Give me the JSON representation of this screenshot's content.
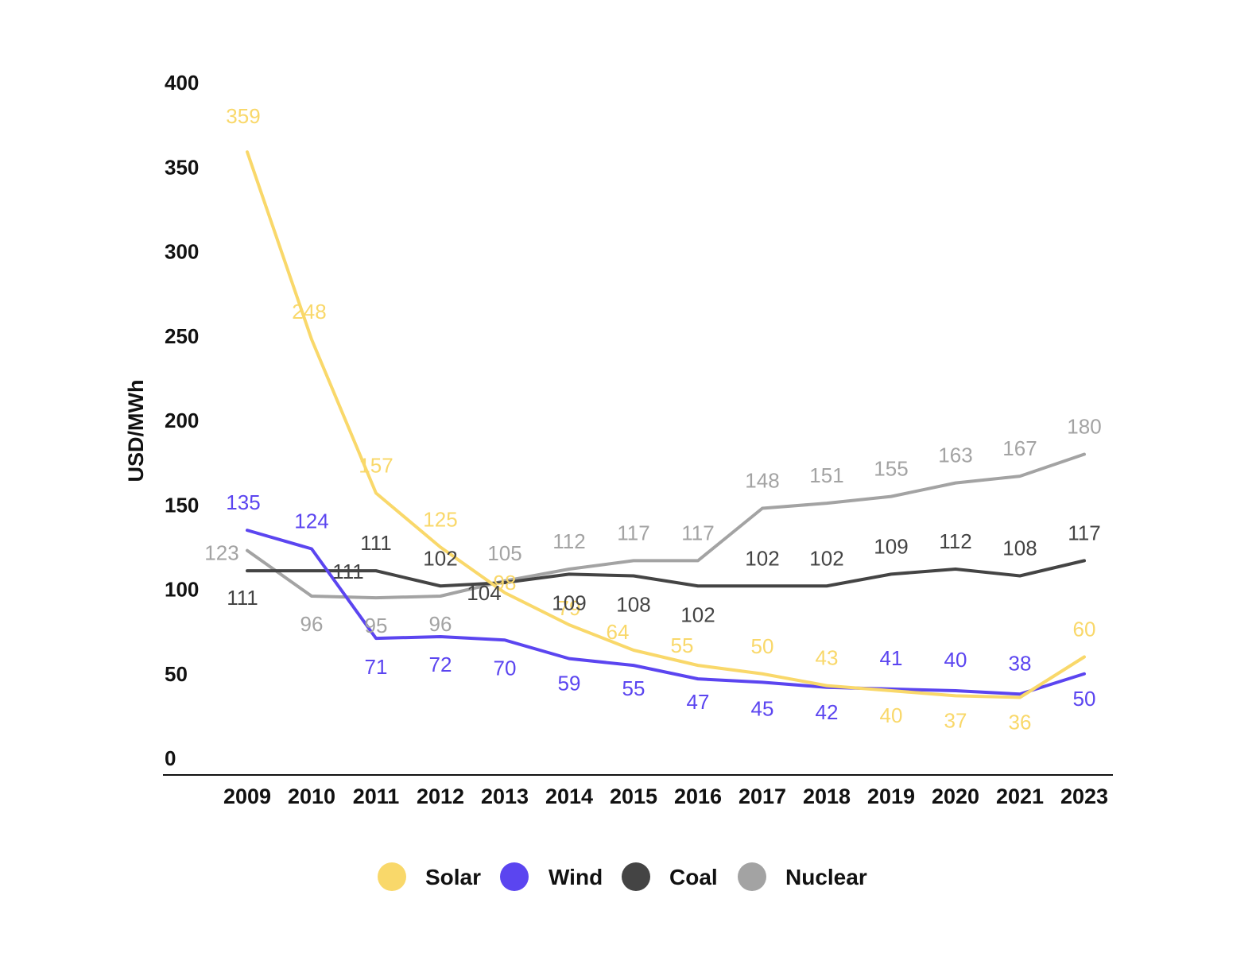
{
  "chart_data": {
    "type": "line",
    "title": "",
    "xlabel": "",
    "ylabel": "USD/MWh",
    "ylim": [
      0,
      400
    ],
    "y_ticks": [
      "0",
      "50",
      "100",
      "150",
      "200",
      "250",
      "300",
      "350",
      "400"
    ],
    "categories": [
      "2009",
      "2010",
      "2011",
      "2012",
      "2013",
      "2014",
      "2015",
      "2016",
      "2017",
      "2018",
      "2019",
      "2020",
      "2021",
      "2023"
    ],
    "grid": false,
    "legend_position": "bottom",
    "series": [
      {
        "name": "Solar",
        "color": "#F9D86A",
        "values": [
          359,
          248,
          157,
          125,
          98,
          79,
          64,
          55,
          50,
          43,
          40,
          37,
          36,
          60
        ],
        "labels": [
          "359",
          "248",
          "157",
          "125",
          "98",
          "79",
          "64",
          "55",
          "50",
          "43",
          "40",
          "37",
          "36",
          "60"
        ]
      },
      {
        "name": "Wind",
        "color": "#5B45F0",
        "values": [
          135,
          124,
          71,
          72,
          70,
          59,
          55,
          47,
          45,
          42,
          41,
          40,
          38,
          50
        ],
        "labels": [
          "135",
          "124",
          "71",
          "72",
          "70",
          "59",
          "55",
          "47",
          "45",
          "42",
          "41",
          "40",
          "38",
          "50"
        ]
      },
      {
        "name": "Coal",
        "color": "#444444",
        "values": [
          111,
          111,
          111,
          102,
          104,
          109,
          108,
          102,
          102,
          102,
          109,
          112,
          108,
          117
        ],
        "labels": [
          "111",
          "111",
          "111",
          "102",
          "104",
          "109",
          "108",
          "102",
          "102",
          "102",
          "109",
          "112",
          "108",
          "117"
        ]
      },
      {
        "name": "Nuclear",
        "color": "#A3A3A3",
        "values": [
          123,
          96,
          95,
          96,
          105,
          112,
          117,
          117,
          148,
          151,
          155,
          163,
          167,
          180
        ],
        "labels": [
          "123",
          "96",
          "95",
          "96",
          "105",
          "112",
          "117",
          "117",
          "148",
          "151",
          "155",
          "163",
          "167",
          "180"
        ]
      }
    ]
  }
}
